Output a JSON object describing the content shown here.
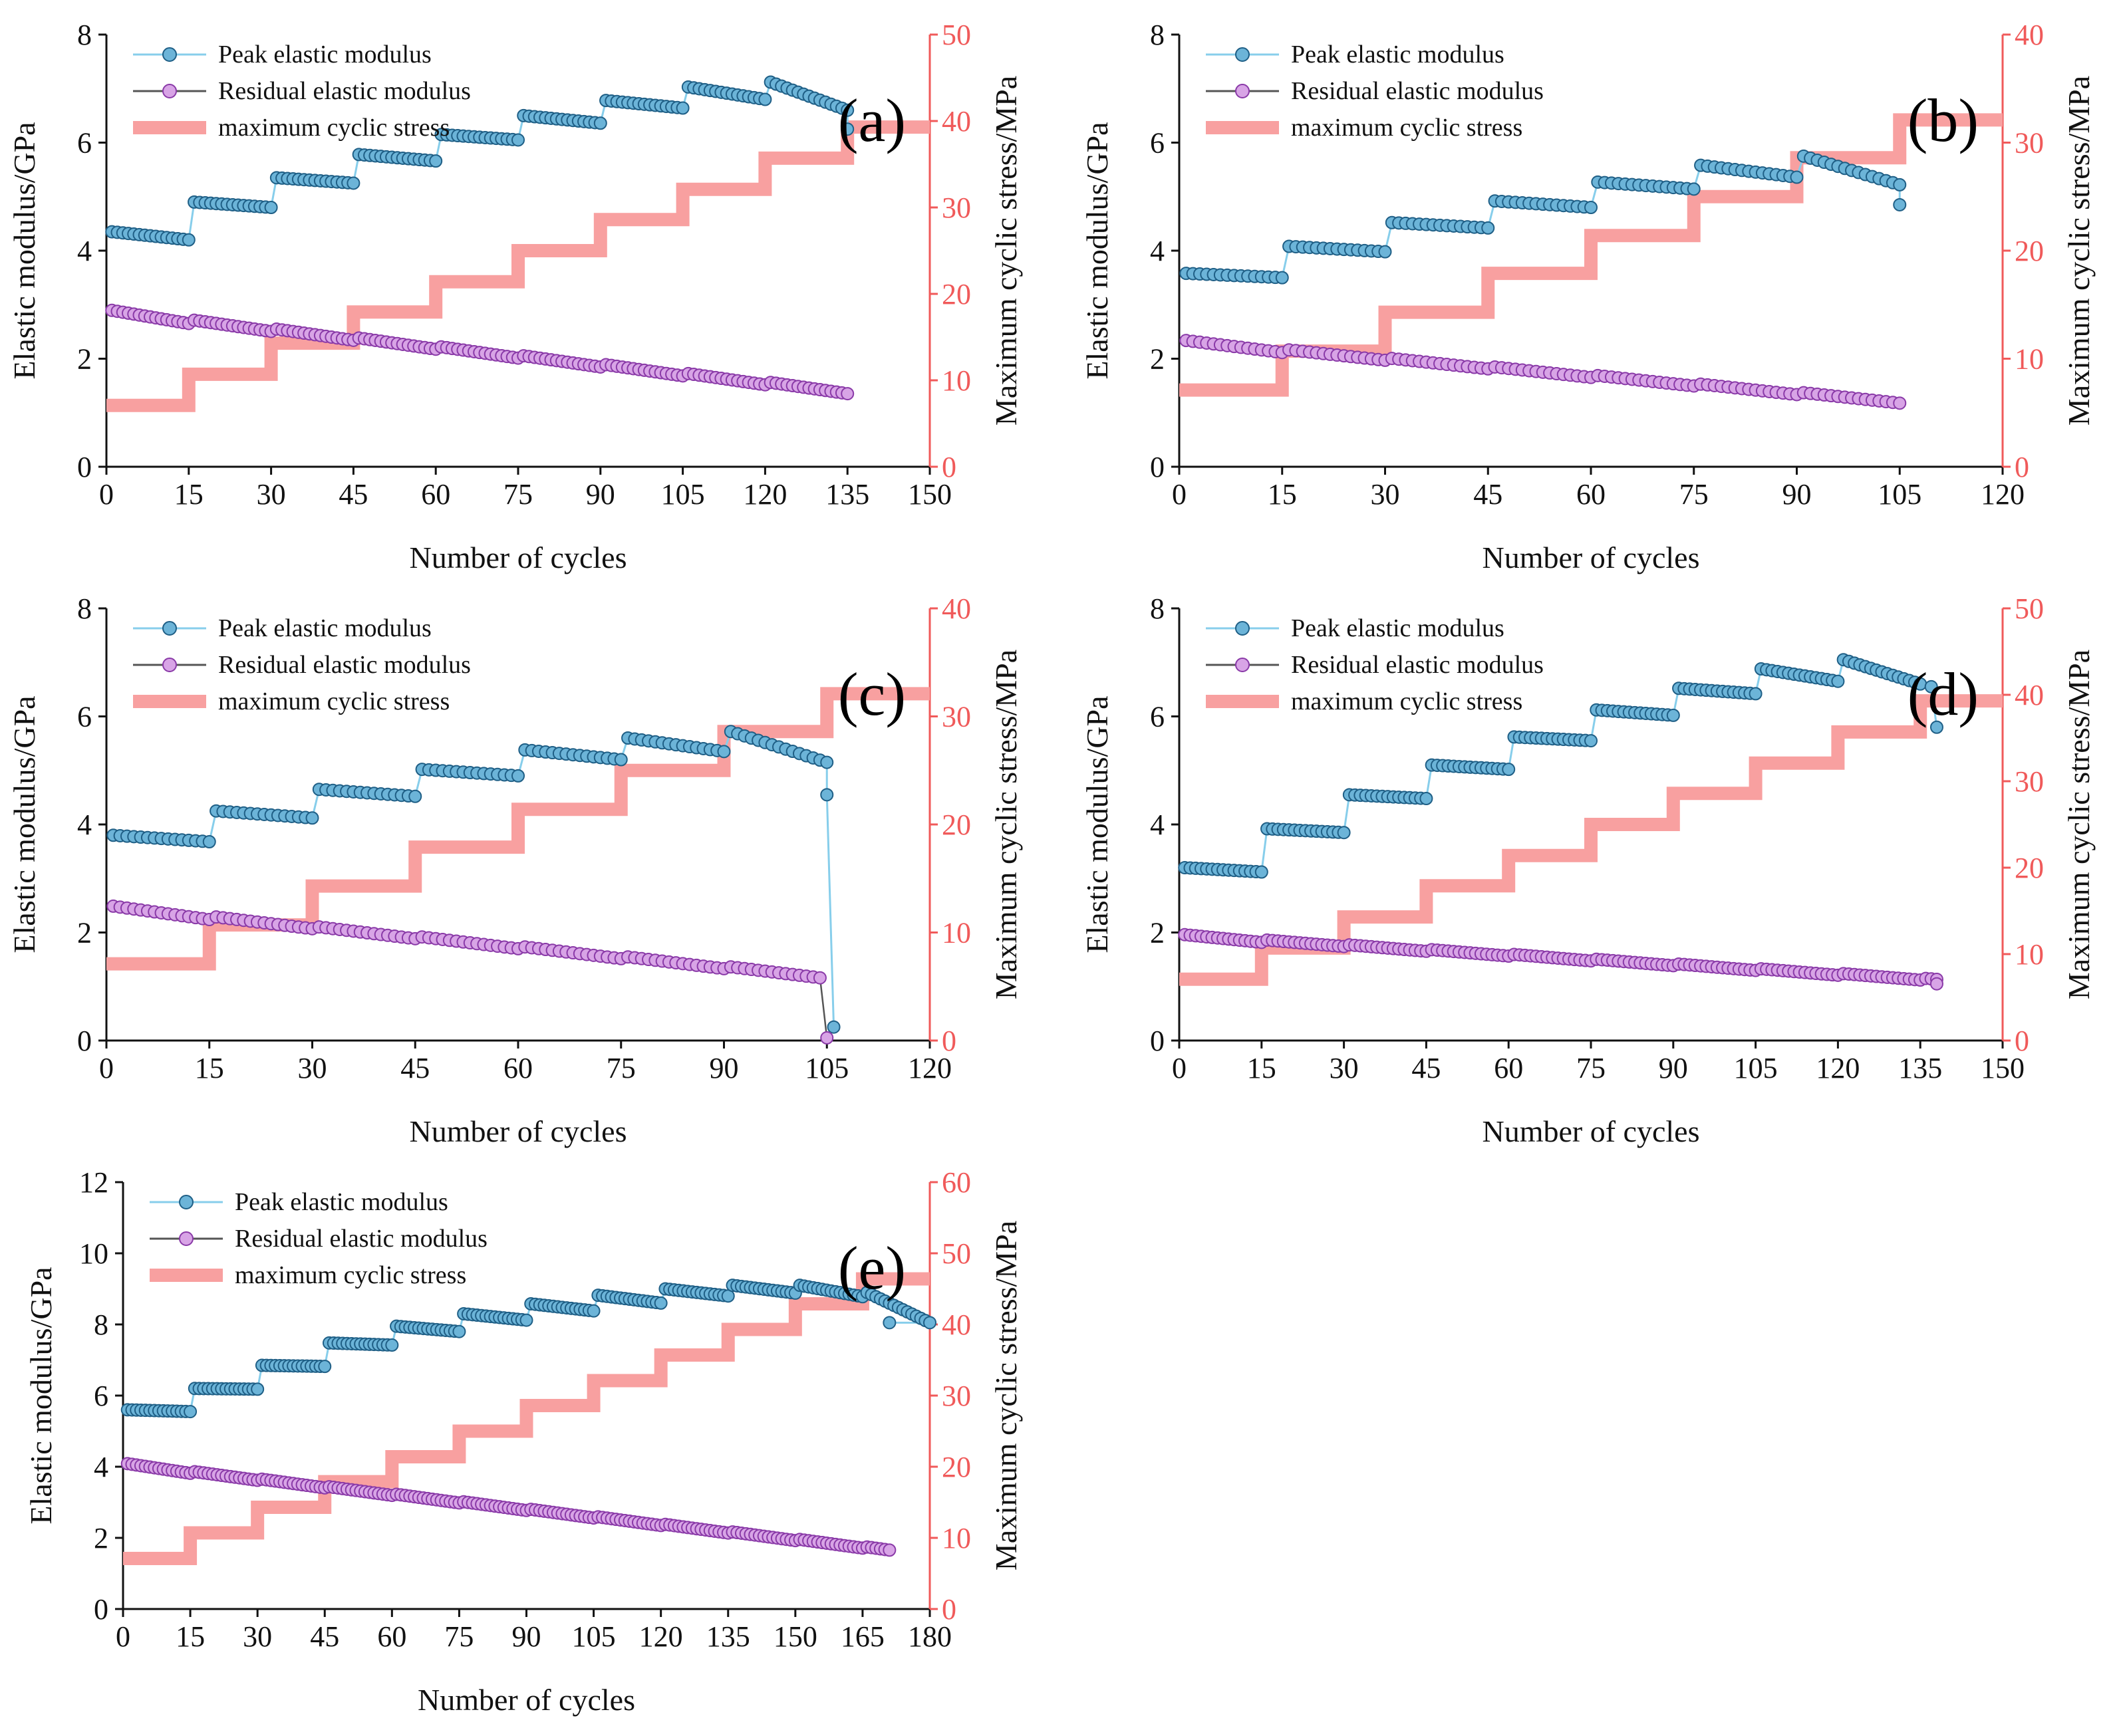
{
  "colors": {
    "peak": "#87ceeb",
    "peak_marker_fill": "#6cb4d8",
    "peak_marker_stroke": "#1f5f86",
    "residual_line": "#555555",
    "residual_marker_fill": "#d8a4e6",
    "residual_marker_stroke": "#8a3aa8",
    "stress": "#f8a0a0",
    "right_axis": "#f05a5a",
    "left_axis": "#111111"
  },
  "chart_data": [
    {
      "id": "a",
      "type": "line",
      "panel_label": "(a)",
      "xlabel": "Number of cycles",
      "ylabel": "Elastic modulus/GPa",
      "y2label": "Maximum cyclic stress/MPa",
      "xlim": [
        0,
        150
      ],
      "xticks": [
        "0",
        "15",
        "30",
        "45",
        "60",
        "75",
        "90",
        "105",
        "120",
        "135",
        "150"
      ],
      "ylim": [
        0,
        8
      ],
      "yticks": [
        "0",
        "2",
        "4",
        "6",
        "8"
      ],
      "y2lim": [
        0,
        50
      ],
      "y2ticks": [
        "0",
        "10",
        "20",
        "30",
        "40",
        "50"
      ],
      "legend": [
        "Peak elastic modulus",
        "Residual elastic modulus",
        "maximum cyclic stress"
      ],
      "series": [
        {
          "name": "Peak elastic modulus",
          "levels": [
            [
              4.35,
              4.2
            ],
            [
              4.9,
              4.8
            ],
            [
              5.35,
              5.25
            ],
            [
              5.78,
              5.66
            ],
            [
              6.15,
              6.05
            ],
            [
              6.5,
              6.36
            ],
            [
              6.78,
              6.64
            ],
            [
              7.03,
              6.8
            ],
            [
              7.12,
              6.6
            ]
          ],
          "fail": [
            [
              135,
              6.25
            ]
          ]
        },
        {
          "name": "Residual elastic modulus",
          "start": 2.85,
          "end": 1.38,
          "step": 0.18,
          "n": 135
        },
        {
          "name": "maximum cyclic stress",
          "axis": "right",
          "levels": [
            7.1,
            10.7,
            14.3,
            17.9,
            21.4,
            25.0,
            28.6,
            32.1,
            35.7,
            39.3
          ],
          "xend": 150
        }
      ]
    },
    {
      "id": "b",
      "type": "line",
      "panel_label": "(b)",
      "xlabel": "Number of cycles",
      "ylabel": "Elastic modulus/GPa",
      "y2label": "Maximum cyclic stress/MPa",
      "xlim": [
        0,
        120
      ],
      "xticks": [
        "0",
        "15",
        "30",
        "45",
        "60",
        "75",
        "90",
        "105",
        "120"
      ],
      "ylim": [
        0,
        8
      ],
      "yticks": [
        "0",
        "2",
        "4",
        "6",
        "8"
      ],
      "y2lim": [
        0,
        40
      ],
      "y2ticks": [
        "0",
        "10",
        "20",
        "30",
        "40"
      ],
      "legend": [
        "Peak elastic modulus",
        "Residual elastic modulus",
        "maximum cyclic stress"
      ],
      "series": [
        {
          "name": "Peak elastic modulus",
          "levels": [
            [
              3.58,
              3.5
            ],
            [
              4.08,
              3.98
            ],
            [
              4.52,
              4.42
            ],
            [
              4.92,
              4.8
            ],
            [
              5.27,
              5.14
            ],
            [
              5.58,
              5.36
            ],
            [
              5.75,
              5.22
            ]
          ],
          "fail": [
            [
              105,
              4.85
            ]
          ]
        },
        {
          "name": "Residual elastic modulus",
          "start": 2.3,
          "end": 1.2,
          "step": 0.15,
          "n": 105
        },
        {
          "name": "maximum cyclic stress",
          "axis": "right",
          "levels": [
            7.1,
            10.7,
            14.3,
            17.9,
            21.4,
            25.0,
            28.6,
            32.1
          ],
          "xend": 120
        }
      ]
    },
    {
      "id": "c",
      "type": "line",
      "panel_label": "(c)",
      "xlabel": "Number of cycles",
      "ylabel": "Elastic modulus/GPa",
      "y2label": "Maximum cyclic stress/MPa",
      "xlim": [
        0,
        120
      ],
      "xticks": [
        "0",
        "15",
        "30",
        "45",
        "60",
        "75",
        "90",
        "105",
        "120"
      ],
      "ylim": [
        0,
        8
      ],
      "yticks": [
        "0",
        "2",
        "4",
        "6",
        "8"
      ],
      "y2lim": [
        0,
        40
      ],
      "y2ticks": [
        "0",
        "10",
        "20",
        "30",
        "40"
      ],
      "legend": [
        "Peak elastic modulus",
        "Residual elastic modulus",
        "maximum cyclic stress"
      ],
      "series": [
        {
          "name": "Peak elastic modulus",
          "levels": [
            [
              3.8,
              3.68
            ],
            [
              4.25,
              4.12
            ],
            [
              4.65,
              4.52
            ],
            [
              5.02,
              4.9
            ],
            [
              5.38,
              5.2
            ],
            [
              5.6,
              5.35
            ],
            [
              5.72,
              5.15
            ]
          ],
          "fail": [
            [
              105,
              4.55
            ],
            [
              106,
              0.25
            ]
          ]
        },
        {
          "name": "Residual elastic modulus",
          "start": 2.45,
          "end": 1.18,
          "step": 0.15,
          "n": 104,
          "fail": [
            [
              105,
              0.05
            ]
          ]
        },
        {
          "name": "maximum cyclic stress",
          "axis": "right",
          "levels": [
            7.1,
            10.7,
            14.3,
            17.9,
            21.4,
            25.0,
            28.6,
            32.1
          ],
          "xend": 120
        }
      ]
    },
    {
      "id": "d",
      "type": "line",
      "panel_label": "(d)",
      "xlabel": "Number of cycles",
      "ylabel": "Elastic modulus/GPa",
      "y2label": "Maximum cyclic stress/MPa",
      "xlim": [
        0,
        150
      ],
      "xticks": [
        "0",
        "15",
        "30",
        "45",
        "60",
        "75",
        "90",
        "105",
        "120",
        "135",
        "150"
      ],
      "ylim": [
        0,
        8
      ],
      "yticks": [
        "0",
        "2",
        "4",
        "6",
        "8"
      ],
      "y2lim": [
        0,
        50
      ],
      "y2ticks": [
        "0",
        "10",
        "20",
        "30",
        "40",
        "50"
      ],
      "legend": [
        "Peak elastic modulus",
        "Residual elastic modulus",
        "maximum cyclic stress"
      ],
      "series": [
        {
          "name": "Peak elastic modulus",
          "levels": [
            [
              3.2,
              3.12
            ],
            [
              3.92,
              3.85
            ],
            [
              4.55,
              4.48
            ],
            [
              5.1,
              5.02
            ],
            [
              5.62,
              5.55
            ],
            [
              6.12,
              6.02
            ],
            [
              6.52,
              6.42
            ],
            [
              6.88,
              6.65
            ],
            [
              7.05,
              6.6
            ]
          ],
          "fail": [
            [
              137,
              6.55
            ],
            [
              138,
              5.8
            ]
          ]
        },
        {
          "name": "Residual elastic modulus",
          "start": 1.93,
          "end": 1.12,
          "step": 0.12,
          "n": 138,
          "fail": [
            [
              138,
              1.05
            ]
          ]
        },
        {
          "name": "maximum cyclic stress",
          "axis": "right",
          "levels": [
            7.1,
            10.7,
            14.3,
            17.9,
            21.4,
            25.0,
            28.6,
            32.1,
            35.7,
            39.3
          ],
          "xend": 150
        }
      ]
    },
    {
      "id": "e",
      "type": "line",
      "panel_label": "(e)",
      "xlabel": "Number of cycles",
      "ylabel": "Elastic modulus/GPa",
      "y2label": "Maximum cyclic stress/MPa",
      "xlim": [
        0,
        180
      ],
      "xticks": [
        "0",
        "15",
        "30",
        "45",
        "60",
        "75",
        "90",
        "105",
        "120",
        "135",
        "150",
        "165",
        "180"
      ],
      "ylim": [
        0,
        12
      ],
      "yticks": [
        "0",
        "2",
        "4",
        "6",
        "8",
        "10",
        "12"
      ],
      "y2lim": [
        0,
        60
      ],
      "y2ticks": [
        "0",
        "10",
        "20",
        "30",
        "40",
        "50",
        "60"
      ],
      "legend": [
        "Peak elastic modulus",
        "Residual elastic modulus",
        "maximum cyclic stress"
      ],
      "series": [
        {
          "name": "Peak elastic modulus",
          "levels": [
            [
              5.6,
              5.55
            ],
            [
              6.2,
              6.18
            ],
            [
              6.85,
              6.82
            ],
            [
              7.48,
              7.42
            ],
            [
              7.95,
              7.8
            ],
            [
              8.3,
              8.12
            ],
            [
              8.58,
              8.38
            ],
            [
              8.82,
              8.6
            ],
            [
              9.0,
              8.8
            ],
            [
              9.1,
              8.88
            ],
            [
              9.1,
              8.78
            ],
            [
              8.9,
              8.05
            ]
          ],
          "fail": [
            [
              171,
              8.05
            ]
          ]
        },
        {
          "name": "Residual elastic modulus",
          "start": 4.05,
          "end": 1.65,
          "step": 0.15,
          "n": 171
        },
        {
          "name": "maximum cyclic stress",
          "axis": "right",
          "levels": [
            7.1,
            10.7,
            14.3,
            17.9,
            21.4,
            25.0,
            28.6,
            32.1,
            35.7,
            39.3,
            42.9,
            46.4
          ],
          "xend": 180
        }
      ]
    }
  ]
}
